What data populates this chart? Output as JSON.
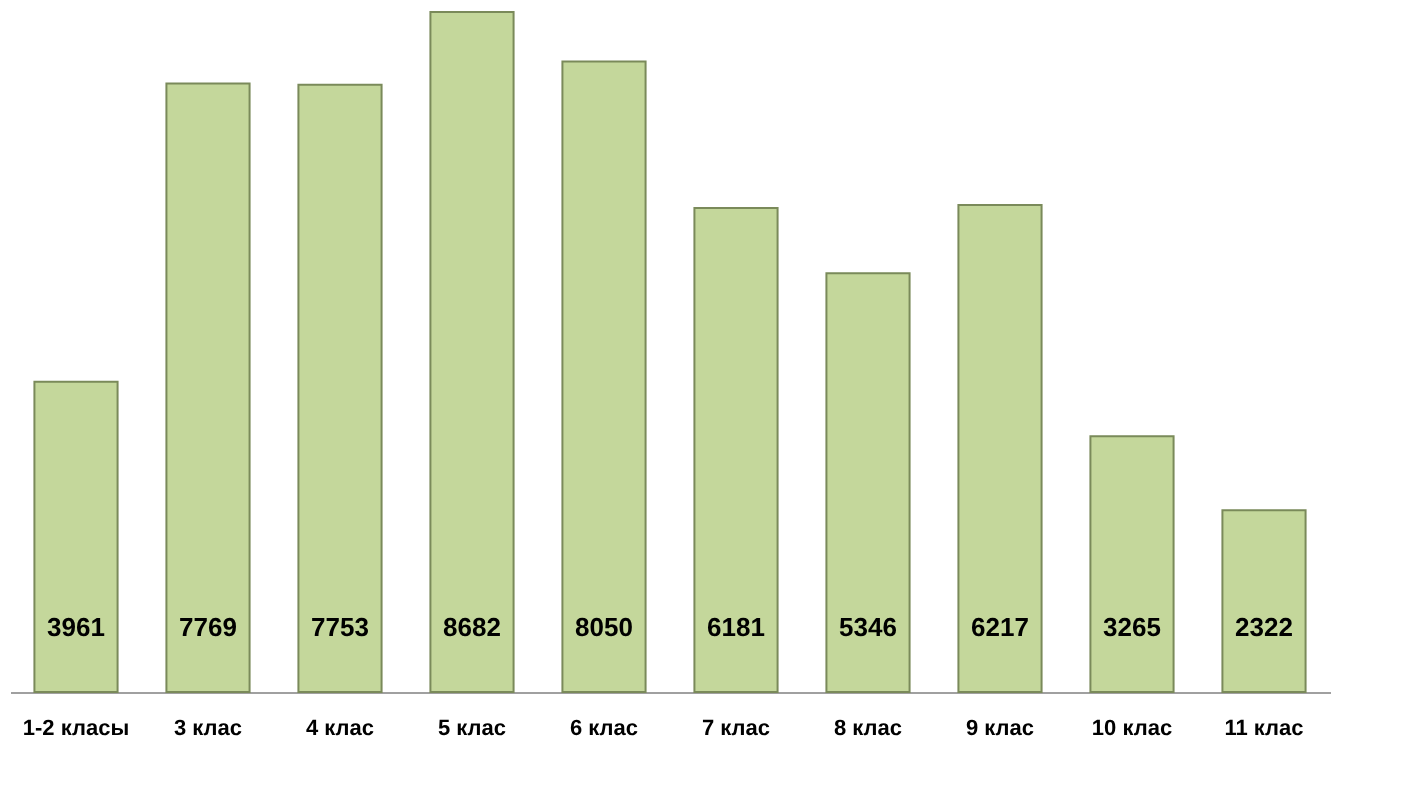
{
  "chart_data": {
    "type": "bar",
    "categories": [
      "1-2 класы",
      "3 клас",
      "4 клас",
      "5 клас",
      "6 клас",
      "7 клас",
      "8 клас",
      "9 клас",
      "10 клас",
      "11 клас"
    ],
    "values": [
      3961,
      7769,
      7753,
      8682,
      8050,
      6181,
      5346,
      6217,
      3265,
      2322
    ],
    "color": "#c4d79b",
    "data_labels": true,
    "grid": false
  }
}
